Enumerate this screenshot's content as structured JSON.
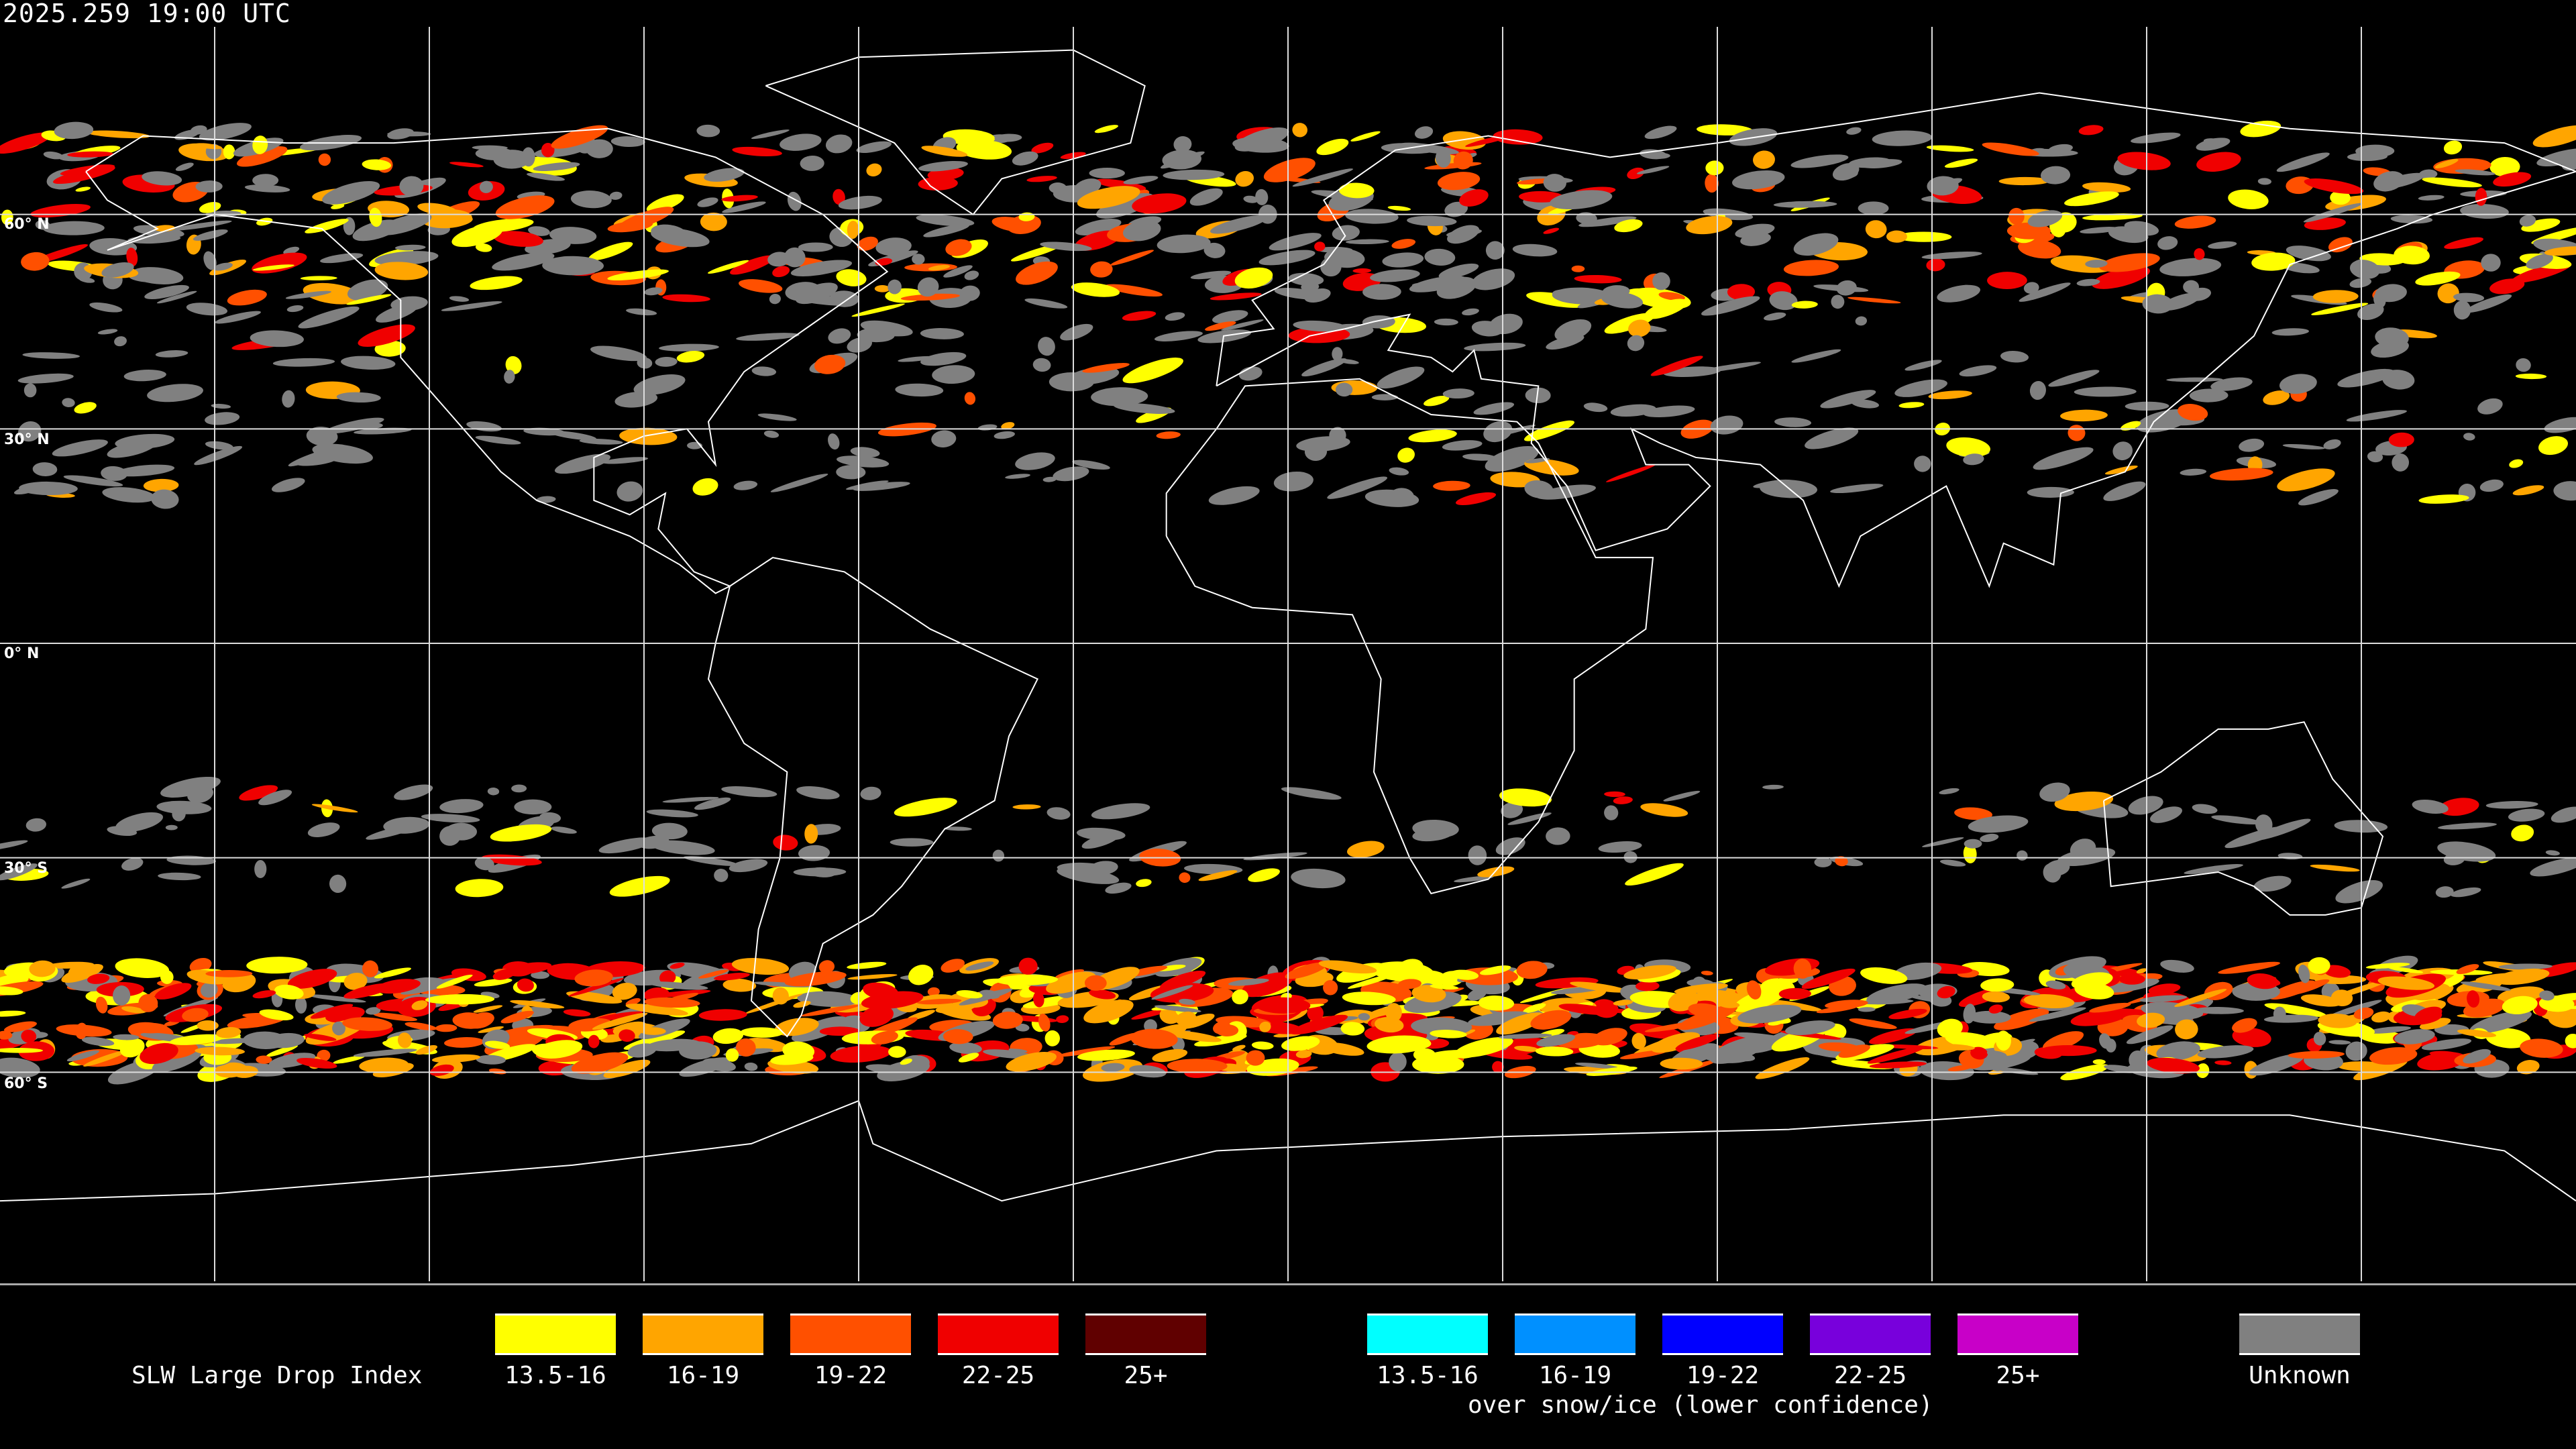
{
  "timestamp": "2025.259 19:00 UTC",
  "lat_labels": [
    "60° N",
    "30° N",
    "0° N",
    "30° S",
    "60° S"
  ],
  "legend": {
    "title": "SLW Large Drop Index",
    "primary": [
      {
        "label": "13.5-16",
        "color": "#ffff00"
      },
      {
        "label": "16-19",
        "color": "#ffa500"
      },
      {
        "label": "19-22",
        "color": "#ff5000"
      },
      {
        "label": "22-25",
        "color": "#f00000"
      },
      {
        "label": "25+",
        "color": "#600000"
      }
    ],
    "snow_ice": [
      {
        "label": "13.5-16",
        "color": "#00ffff"
      },
      {
        "label": "16-19",
        "color": "#0090ff"
      },
      {
        "label": "19-22",
        "color": "#0000ff"
      },
      {
        "label": "22-25",
        "color": "#7800dc"
      },
      {
        "label": "25+",
        "color": "#c800c8"
      }
    ],
    "snow_ice_caption": "over snow/ice (lower confidence)",
    "unknown": {
      "label": "Unknown",
      "color": "#808080"
    }
  }
}
